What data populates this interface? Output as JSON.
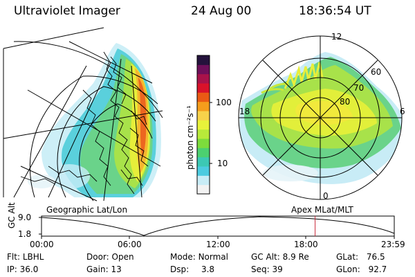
{
  "header": {
    "instrument": "Ultraviolet Imager",
    "date": "24 Aug 00",
    "time": "18:36:54 UT"
  },
  "geo_panel": {
    "label": "Geographic Lat/Lon"
  },
  "polar_panel": {
    "label": "Apex MLat/MLT",
    "mlt_labels": [
      "12",
      "18",
      "6",
      "0"
    ],
    "mlat_labels": [
      "60",
      "70",
      "80"
    ]
  },
  "colorbar": {
    "unit": "photon cm⁻²s⁻¹",
    "ticks": [
      "100",
      "10"
    ],
    "scale": "log",
    "colors": [
      "#f2f2f2",
      "#c8ecf6",
      "#4ccbe0",
      "#3cc8b4",
      "#4cd070",
      "#7ddc3c",
      "#b8ea3a",
      "#e8f23a",
      "#f7d24a",
      "#f59d1c",
      "#ea5a14",
      "#d9122a",
      "#a8124a",
      "#6e0f5a",
      "#24123c"
    ]
  },
  "altitude_plot": {
    "ylabel": "GC Alt",
    "yticks": [
      "9.0",
      "1.8"
    ],
    "xticks": [
      "00:00",
      "06:00",
      "12:00",
      "18:00",
      "23:59"
    ],
    "marker_time": "18:36:54",
    "marker_color": "#c8283a"
  },
  "info": {
    "filter": {
      "label": "Flt:",
      "value": "LBHL"
    },
    "ip": {
      "label": "IP:",
      "value": "36.0"
    },
    "door": {
      "label": "Door:",
      "value": "Open"
    },
    "gain": {
      "label": "Gain:",
      "value": "13"
    },
    "mode": {
      "label": "Mode:",
      "value": "Normal"
    },
    "dsp": {
      "label": "Dsp:",
      "value": "3.8"
    },
    "gc_alt": {
      "label": "GC Alt:",
      "value": "8.9 Re"
    },
    "seq": {
      "label": "Seq:",
      "value": "39"
    },
    "glat": {
      "label": "GLat:",
      "value": "76.5"
    },
    "glon": {
      "label": "GLon:",
      "value": "92.7"
    }
  }
}
